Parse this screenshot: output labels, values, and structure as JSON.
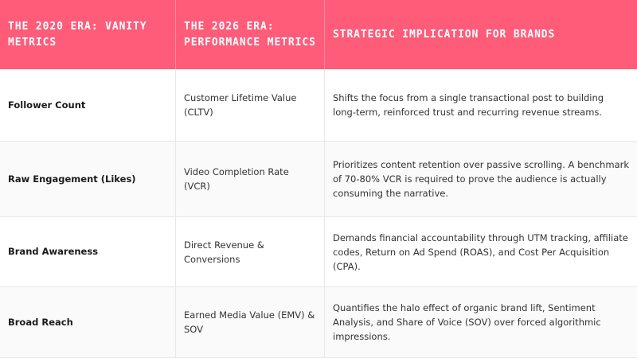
{
  "headers": [
    "THE 2020 ERA: VANITY METRICS",
    "THE 2026 ERA: PERFORMANCE METRICS",
    "STRATEGIC IMPLICATION FOR BRANDS"
  ],
  "rows": [
    {
      "vanity": "Follower Count",
      "performance": "Customer Lifetime Value (CLTV)",
      "implication": "Shifts the focus from a single transactional post to building long-term, reinforced trust and recurring revenue streams."
    },
    {
      "vanity": "Raw Engagement (Likes)",
      "performance": "Video Completion Rate (VCR)",
      "implication": "Prioritizes content retention over passive scrolling. A benchmark of 70-80% VCR is required to prove the audience is actually consuming the narrative."
    },
    {
      "vanity": "Brand Awareness",
      "performance": "Direct Revenue & Conversions",
      "implication": "Demands financial accountability through UTM tracking, affiliate codes, Return on Ad Spend (ROAS), and Cost Per Acquisition (CPA)."
    },
    {
      "vanity": "Broad Reach",
      "performance": "Earned Media Value (EMV) & SOV",
      "implication": "Quantifies the halo effect of organic brand lift, Sentiment Analysis, and Share of Voice (SOV) over forced algorithmic impressions."
    }
  ],
  "colors": {
    "header_bg": "#ff5c7a",
    "header_text": "#ffffff"
  }
}
